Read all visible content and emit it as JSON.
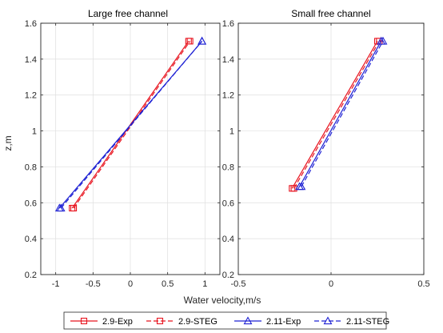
{
  "chart_data": [
    {
      "type": "line",
      "title": "Large free channel",
      "ylabel": "z,m",
      "xlim": [
        -1.2,
        1.2
      ],
      "ylim": [
        0.2,
        1.6
      ],
      "x_ticks": [
        -1,
        -0.5,
        0,
        0.5,
        1
      ],
      "x_tick_labels": [
        "-1",
        "-0.5",
        "0",
        "0.5",
        "1"
      ],
      "y_ticks": [
        0.2,
        0.4,
        0.6,
        0.8,
        1.0,
        1.2,
        1.4,
        1.6
      ],
      "y_tick_labels": [
        "0.2",
        "0.4",
        "0.6",
        "0.8",
        "1",
        "1.2",
        "1.4",
        "1.6"
      ],
      "grid": true,
      "series": [
        {
          "name": "2.9-Exp",
          "x": [
            -0.78,
            0.78
          ],
          "y": [
            0.57,
            1.5
          ],
          "color": "#e8141f",
          "dash": "solid",
          "marker": "square"
        },
        {
          "name": "2.9-STEG",
          "x": [
            -0.76,
            0.8
          ],
          "y": [
            0.57,
            1.5
          ],
          "color": "#e8141f",
          "dash": "dashed",
          "marker": "square"
        },
        {
          "name": "2.11-Exp",
          "x": [
            -0.95,
            0.96
          ],
          "y": [
            0.57,
            1.5
          ],
          "color": "#1f22d4",
          "dash": "solid",
          "marker": "triangle"
        },
        {
          "name": "2.11-STEG",
          "x": [
            -0.93,
            0.96
          ],
          "y": [
            0.57,
            1.5
          ],
          "color": "#1f22d4",
          "dash": "dashed",
          "marker": "triangle"
        }
      ]
    },
    {
      "type": "line",
      "title": "Small free channel",
      "xlim": [
        -0.5,
        0.5
      ],
      "ylim": [
        0.2,
        1.6
      ],
      "x_ticks": [
        -0.5,
        0,
        0.5
      ],
      "x_tick_labels": [
        "-0.5",
        "0",
        "0.5"
      ],
      "y_ticks": [
        0.2,
        0.4,
        0.6,
        0.8,
        1.0,
        1.2,
        1.4,
        1.6
      ],
      "y_tick_labels": [
        "0.2",
        "0.4",
        "0.6",
        "0.8",
        "1",
        "1.2",
        "1.4",
        "1.6"
      ],
      "grid": true,
      "series": [
        {
          "name": "2.9-Exp",
          "x": [
            -0.21,
            0.25
          ],
          "y": [
            0.68,
            1.5
          ],
          "color": "#e8141f",
          "dash": "solid",
          "marker": "square"
        },
        {
          "name": "2.9-STEG",
          "x": [
            -0.2,
            0.26
          ],
          "y": [
            0.68,
            1.5
          ],
          "color": "#e8141f",
          "dash": "dashed",
          "marker": "square"
        },
        {
          "name": "2.11-Exp",
          "x": [
            -0.17,
            0.27
          ],
          "y": [
            0.69,
            1.5
          ],
          "color": "#1f22d4",
          "dash": "solid",
          "marker": "triangle"
        },
        {
          "name": "2.11-STEG",
          "x": [
            -0.16,
            0.28
          ],
          "y": [
            0.69,
            1.5
          ],
          "color": "#1f22d4",
          "dash": "dashed",
          "marker": "triangle"
        }
      ]
    }
  ],
  "shared_xlabel": "Water velocity,m/s",
  "legend": [
    {
      "label": "2.9-Exp",
      "color": "#e8141f",
      "dash": "solid",
      "marker": "square"
    },
    {
      "label": "2.9-STEG",
      "color": "#e8141f",
      "dash": "dashed",
      "marker": "square"
    },
    {
      "label": "2.11-Exp",
      "color": "#1f22d4",
      "dash": "solid",
      "marker": "triangle"
    },
    {
      "label": "2.11-STEG",
      "color": "#1f22d4",
      "dash": "dashed",
      "marker": "triangle"
    }
  ]
}
